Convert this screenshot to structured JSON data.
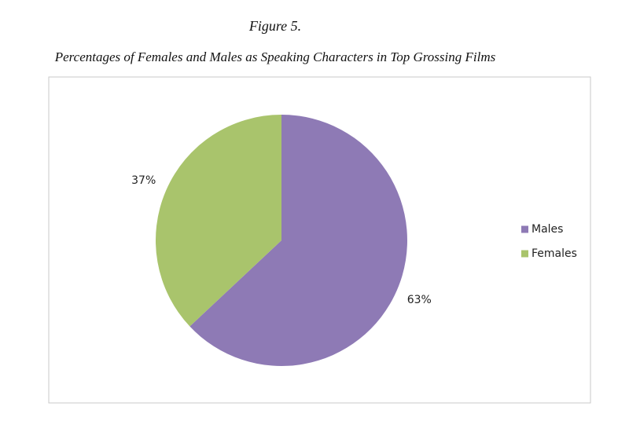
{
  "chart_data": {
    "type": "pie",
    "title": "Figure 5.",
    "subtitle": "Percentages of Females and Males as Speaking Characters in Top Grossing Films",
    "categories": [
      "Males",
      "Females"
    ],
    "values": [
      63,
      37
    ],
    "value_labels": [
      "63%",
      "37%"
    ],
    "colors": [
      "#8e7ab5",
      "#a9c46c"
    ],
    "legend": "right"
  }
}
